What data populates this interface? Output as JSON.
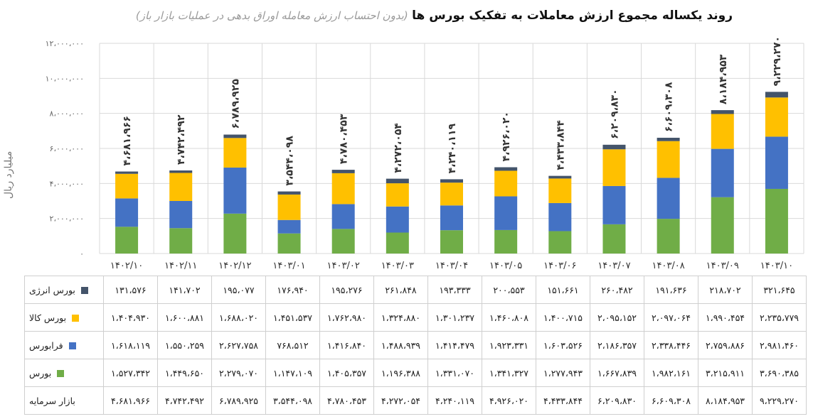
{
  "chart_data": {
    "type": "bar",
    "stacked": true,
    "title": "روند یکساله مجموع ارزش معاملات به تفکیک بورس ها",
    "subtitle": "(بدون احتساب ارزش معامله اوراق بدهی در عملیات بازار باز)",
    "ylabel": "میلیارد ریال",
    "ylim": [
      0,
      12000000
    ],
    "yticks": [
      0,
      2000000,
      4000000,
      6000000,
      8000000,
      10000000,
      12000000
    ],
    "ytick_labels": [
      "۰",
      "۲،۰۰۰،۰۰۰",
      "۴،۰۰۰،۰۰۰",
      "۶،۰۰۰،۰۰۰",
      "۸،۰۰۰،۰۰۰",
      "۱۰،۰۰۰،۰۰۰",
      "۱۲،۰۰۰،۰۰۰"
    ],
    "categories": [
      "۱۴۰۲/۱۰",
      "۱۴۰۲/۱۱",
      "۱۴۰۲/۱۲",
      "۱۴۰۳/۰۱",
      "۱۴۰۳/۰۲",
      "۱۴۰۳/۰۳",
      "۱۴۰۳/۰۴",
      "۱۴۰۳/۰۵",
      "۱۴۰۳/۰۶",
      "۱۴۰۳/۰۷",
      "۱۴۰۳/۰۸",
      "۱۴۰۳/۰۹",
      "۱۴۰۳/۱۰"
    ],
    "series": [
      {
        "name": "بورس",
        "color": "#70ad47",
        "values": [
          1527342,
          1449650,
          2279070,
          1147109,
          1405357,
          1196388,
          1331070,
          1341327,
          1277943,
          1667839,
          1982161,
          3215911,
          3690385
        ],
        "labels": [
          "۱،۵۲۷،۳۴۲",
          "۱،۴۴۹،۶۵۰",
          "۲،۲۷۹،۰۷۰",
          "۱،۱۴۷،۱۰۹",
          "۱،۴۰۵،۳۵۷",
          "۱،۱۹۶،۳۸۸",
          "۱،۳۳۱،۰۷۰",
          "۱،۳۴۱،۳۲۷",
          "۱،۲۷۷،۹۴۳",
          "۱،۶۶۷،۸۳۹",
          "۱،۹۸۲،۱۶۱",
          "۳،۲۱۵،۹۱۱",
          "۳،۶۹۰،۳۸۵"
        ]
      },
      {
        "name": "فرابورس",
        "color": "#4472c4",
        "values": [
          1618119,
          1550259,
          2627758,
          768512,
          1416840,
          1488939,
          1414479,
          1923331,
          1603526,
          2186357,
          2338446,
          2759886,
          2981460
        ],
        "labels": [
          "۱،۶۱۸،۱۱۹",
          "۱،۵۵۰،۲۵۹",
          "۲،۶۲۷،۷۵۸",
          "۷۶۸،۵۱۲",
          "۱،۴۱۶،۸۴۰",
          "۱،۴۸۸،۹۳۹",
          "۱،۴۱۴،۴۷۹",
          "۱،۹۲۳،۳۳۱",
          "۱،۶۰۳،۵۲۶",
          "۲،۱۸۶،۳۵۷",
          "۲،۳۳۸،۴۴۶",
          "۲،۷۵۹،۸۸۶",
          "۲،۹۸۱،۴۶۰"
        ]
      },
      {
        "name": "بورس کالا",
        "color": "#ffc000",
        "values": [
          1404930,
          1600881,
          1688020,
          1451537,
          1762980,
          1324880,
          1301237,
          1460808,
          1400715,
          2095152,
          2097064,
          1990454,
          2235779
        ],
        "labels": [
          "۱،۴۰۴،۹۳۰",
          "۱،۶۰۰،۸۸۱",
          "۱،۶۸۸،۰۲۰",
          "۱،۴۵۱،۵۳۷",
          "۱،۷۶۲،۹۸۰",
          "۱،۳۲۴،۸۸۰",
          "۱،۳۰۱،۲۳۷",
          "۱،۴۶۰،۸۰۸",
          "۱،۴۰۰،۷۱۵",
          "۲،۰۹۵،۱۵۲",
          "۲،۰۹۷،۰۶۴",
          "۱،۹۹۰،۴۵۴",
          "۲،۲۳۵،۷۷۹"
        ]
      },
      {
        "name": "بورس انرژی",
        "color": "#44546a",
        "values": [
          131576,
          141702,
          195077,
          176940,
          195276,
          261848,
          193333,
          200553,
          151661,
          260482,
          191636,
          218702,
          321645
        ],
        "labels": [
          "۱۳۱،۵۷۶",
          "۱۴۱،۷۰۲",
          "۱۹۵،۰۷۷",
          "۱۷۶،۹۴۰",
          "۱۹۵،۲۷۶",
          "۲۶۱،۸۴۸",
          "۱۹۳،۳۳۳",
          "۲۰۰،۵۵۳",
          "۱۵۱،۶۶۱",
          "۲۶۰،۴۸۲",
          "۱۹۱،۶۳۶",
          "۲۱۸،۷۰۲",
          "۳۲۱،۶۴۵"
        ]
      }
    ],
    "totals_name": "بازار سرمایه",
    "totals": [
      4681966,
      4742492,
      6789925,
      3544098,
      4780453,
      4272054,
      4240119,
      4926020,
      4433844,
      6209830,
      6609308,
      8184953,
      9229270
    ],
    "totals_labels": [
      "۴،۶۸۱،۹۶۶",
      "۴،۷۴۲،۴۹۲",
      "۶،۷۸۹،۹۲۵",
      "۳،۵۴۴،۰۹۸",
      "۴،۷۸۰،۴۵۳",
      "۴،۲۷۲،۰۵۴",
      "۴،۲۴۰،۱۱۹",
      "۴،۹۲۶،۰۲۰",
      "۴،۴۳۳،۸۴۴",
      "۶،۲۰۹،۸۳۰",
      "۶،۶۰۹،۳۰۸",
      "۸،۱۸۴،۹۵۳",
      "۹،۲۲۹،۲۷۰"
    ],
    "grid": true,
    "legend": "table-below"
  }
}
